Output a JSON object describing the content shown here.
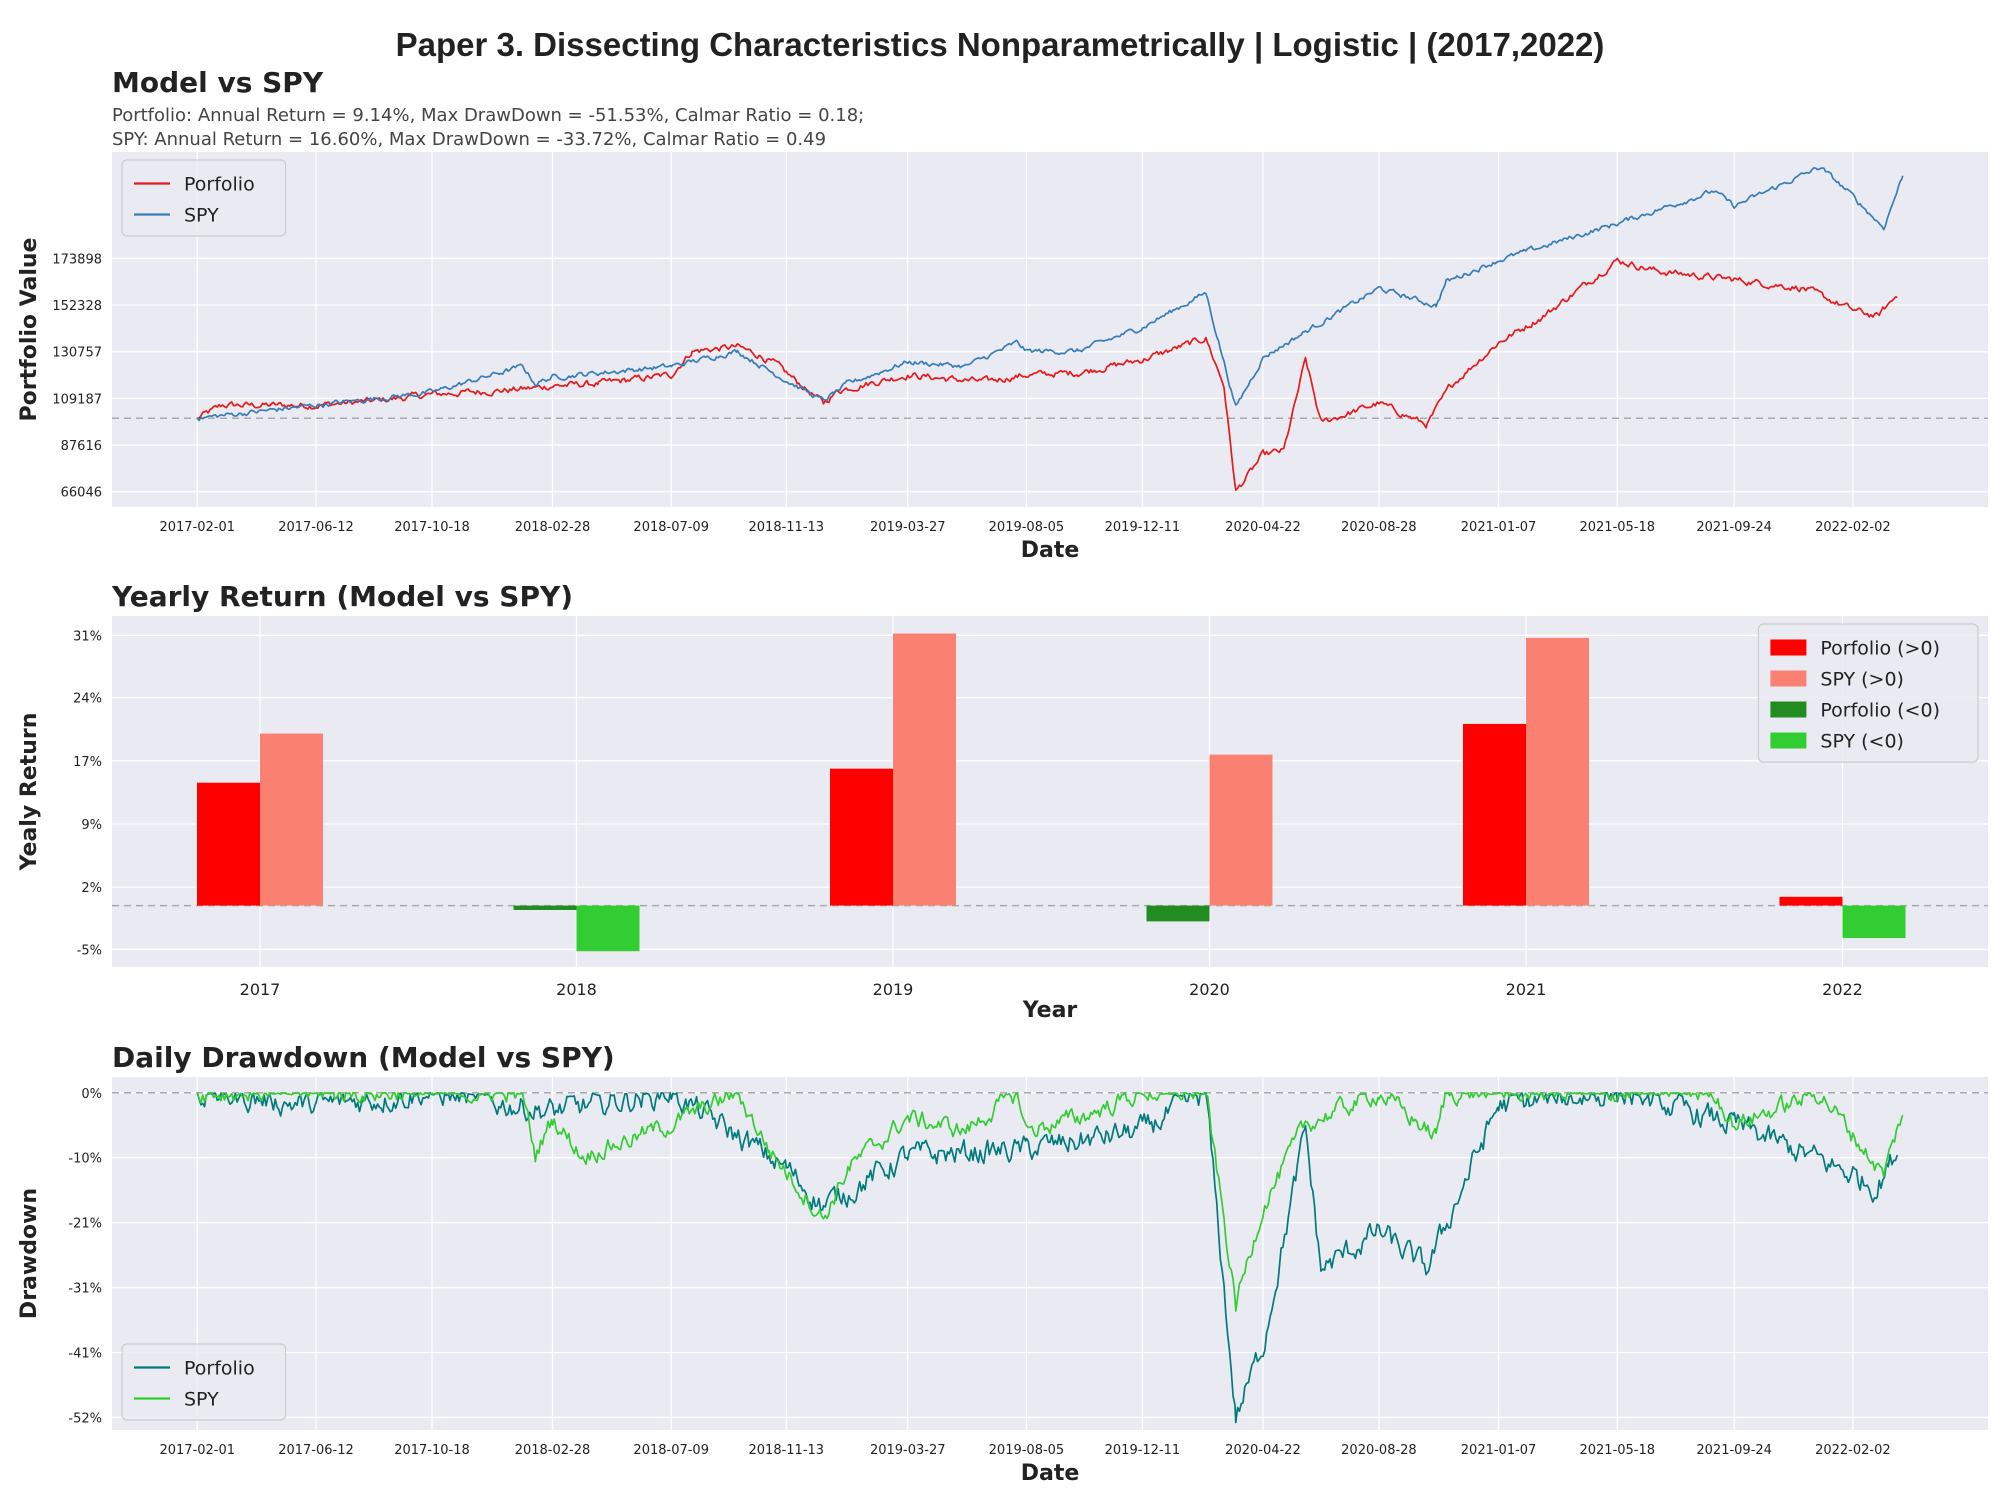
{
  "figure_title": "Paper 3. Dissecting Characteristics Nonparametrically | Logistic | (2017,2022)",
  "colors": {
    "portfolio_line": "#e41a1c",
    "spy_line": "#377eb8",
    "pos_portfolio": "#ff0000",
    "pos_spy": "#fa8072",
    "neg_portfolio": "#228b22",
    "neg_spy": "#32cd32",
    "dd_portfolio": "#007a7a",
    "dd_spy": "#32cd32",
    "panel_bg": "#eaeaf2",
    "grid": "#ffffff",
    "ref_line": "#aaaaaa"
  },
  "chart_data": [
    {
      "type": "line",
      "title": "Model vs SPY",
      "subtitle_lines": [
        "Portfolio: Annual Return = 9.14%, Max DrawDown = -51.53%, Calmar Ratio = 0.18;",
        "SPY: Annual Return = 16.60%, Max DrawDown = -33.72%, Calmar Ratio = 0.49"
      ],
      "xlabel": "Date",
      "ylabel": "Portfolio Value",
      "x_ticks": [
        "2017-02-01",
        "2017-06-12",
        "2017-10-18",
        "2018-02-28",
        "2018-07-09",
        "2018-11-13",
        "2019-03-27",
        "2019-08-05",
        "2019-12-11",
        "2020-04-22",
        "2020-08-28",
        "2021-01-07",
        "2021-05-18",
        "2021-09-24",
        "2022-02-02"
      ],
      "y_ticks": [
        66046,
        87616,
        109187,
        130757,
        152328,
        173898
      ],
      "ylim": [
        59000,
        223000
      ],
      "reference_value": 100000,
      "legend": "upper-left",
      "series": [
        {
          "name": "Porfolio",
          "anchors": [
            [
              "2017-02-01",
              100000
            ],
            [
              "2017-03-01",
              106000
            ],
            [
              "2017-06-12",
              106000
            ],
            [
              "2017-08-15",
              108000
            ],
            [
              "2017-10-18",
              111000
            ],
            [
              "2018-01-10",
              113000
            ],
            [
              "2018-02-09",
              114000
            ],
            [
              "2018-02-28",
              115000
            ],
            [
              "2018-04-20",
              116000
            ],
            [
              "2018-07-09",
              120000
            ],
            [
              "2018-08-01",
              131000
            ],
            [
              "2018-09-20",
              133000
            ],
            [
              "2018-10-15",
              129000
            ],
            [
              "2018-11-01",
              125000
            ],
            [
              "2018-12-24",
              107000
            ],
            [
              "2019-01-10",
              113000
            ],
            [
              "2019-03-27",
              120000
            ],
            [
              "2019-05-15",
              118000
            ],
            [
              "2019-06-20",
              117000
            ],
            [
              "2019-08-05",
              120000
            ],
            [
              "2019-10-01",
              121000
            ],
            [
              "2019-12-11",
              127000
            ],
            [
              "2020-02-19",
              137000
            ],
            [
              "2020-03-10",
              115000
            ],
            [
              "2020-03-23",
              66000
            ],
            [
              "2020-04-22",
              83000
            ],
            [
              "2020-05-15",
              85000
            ],
            [
              "2020-06-08",
              127000
            ],
            [
              "2020-06-25",
              98000
            ],
            [
              "2020-08-28",
              107000
            ],
            [
              "2020-10-20",
              97000
            ],
            [
              "2020-11-15",
              115000
            ],
            [
              "2021-01-07",
              135000
            ],
            [
              "2021-02-25",
              147000
            ],
            [
              "2021-05-18",
              173000
            ],
            [
              "2021-07-01",
              168000
            ],
            [
              "2021-09-24",
              164000
            ],
            [
              "2021-12-10",
              160000
            ],
            [
              "2022-02-02",
              150000
            ],
            [
              "2022-03-01",
              147000
            ],
            [
              "2022-03-23",
              157000
            ]
          ]
        },
        {
          "name": "SPY",
          "anchors": [
            [
              "2017-02-01",
              100000
            ],
            [
              "2017-06-12",
              106000
            ],
            [
              "2017-10-18",
              112000
            ],
            [
              "2018-01-26",
              124000
            ],
            [
              "2018-02-09",
              116000
            ],
            [
              "2018-02-28",
              119000
            ],
            [
              "2018-07-09",
              124000
            ],
            [
              "2018-09-20",
              131000
            ],
            [
              "2018-10-25",
              122000
            ],
            [
              "2018-12-24",
              108000
            ],
            [
              "2019-01-20",
              116000
            ],
            [
              "2019-03-27",
              126000
            ],
            [
              "2019-05-30",
              124000
            ],
            [
              "2019-07-26",
              135000
            ],
            [
              "2019-08-05",
              131000
            ],
            [
              "2019-10-01",
              131000
            ],
            [
              "2019-12-11",
              142000
            ],
            [
              "2020-02-19",
              158000
            ],
            [
              "2020-03-23",
              105000
            ],
            [
              "2020-04-22",
              128000
            ],
            [
              "2020-06-08",
              140000
            ],
            [
              "2020-08-28",
              160000
            ],
            [
              "2020-10-30",
              152000
            ],
            [
              "2020-11-10",
              163000
            ],
            [
              "2021-01-07",
              173000
            ],
            [
              "2021-05-18",
              190000
            ],
            [
              "2021-09-02",
              205000
            ],
            [
              "2021-09-24",
              198000
            ],
            [
              "2021-12-28",
              216000
            ],
            [
              "2022-01-27",
              205000
            ],
            [
              "2022-03-08",
              188000
            ],
            [
              "2022-03-29",
              212000
            ]
          ]
        }
      ]
    },
    {
      "type": "bar",
      "title": "Yearly Return (Model vs SPY)",
      "xlabel": "Year",
      "ylabel": "Yealy Return",
      "categories": [
        "2017",
        "2018",
        "2019",
        "2020",
        "2021",
        "2022"
      ],
      "y_ticks": [
        "-5%",
        "2%",
        "9%",
        "17%",
        "24%",
        "31%"
      ],
      "ylim": [
        -7,
        33
      ],
      "legend": "upper-right",
      "series": [
        {
          "name": "Porfolio",
          "values": [
            14.0,
            -0.5,
            15.6,
            -1.8,
            20.7,
            1.0
          ]
        },
        {
          "name": "SPY",
          "values": [
            19.6,
            -5.2,
            31.0,
            17.2,
            30.5,
            -3.7
          ]
        }
      ],
      "legend_entries": [
        "Porfolio (>0)",
        "SPY (>0)",
        "Porfolio (<0)",
        "SPY (<0)"
      ]
    },
    {
      "type": "area",
      "title": "Daily Drawdown (Model vs SPY)",
      "xlabel": "Date",
      "ylabel": "Drawdown",
      "x_ticks": [
        "2017-02-01",
        "2017-06-12",
        "2017-10-18",
        "2018-02-28",
        "2018-07-09",
        "2018-11-13",
        "2019-03-27",
        "2019-08-05",
        "2019-12-11",
        "2020-04-22",
        "2020-08-28",
        "2021-01-07",
        "2021-05-18",
        "2021-09-24",
        "2022-02-02"
      ],
      "y_ticks": [
        "0%",
        "-10%",
        "-21%",
        "-31%",
        "-41%",
        "-52%"
      ],
      "ylim": [
        -53.5,
        2.5
      ],
      "legend": "lower-left",
      "series": [
        {
          "name": "Porfolio",
          "anchors": [
            [
              "2017-02-01",
              0
            ],
            [
              "2017-06-12",
              -2
            ],
            [
              "2017-10-18",
              0
            ],
            [
              "2018-02-28",
              -3
            ],
            [
              "2018-07-09",
              0
            ],
            [
              "2018-11-13",
              -12
            ],
            [
              "2018-12-24",
              -18
            ],
            [
              "2019-03-27",
              -10
            ],
            [
              "2019-08-05",
              -9
            ],
            [
              "2019-12-11",
              -6
            ],
            [
              "2020-02-19",
              0
            ],
            [
              "2020-03-23",
              -51.5
            ],
            [
              "2020-04-22",
              -40
            ],
            [
              "2020-06-08",
              -6
            ],
            [
              "2020-06-25",
              -28
            ],
            [
              "2020-08-28",
              -22
            ],
            [
              "2020-10-20",
              -28
            ],
            [
              "2020-12-01",
              -14
            ],
            [
              "2021-01-07",
              -2
            ],
            [
              "2021-05-18",
              0
            ],
            [
              "2021-09-24",
              -5
            ],
            [
              "2022-02-02",
              -13
            ],
            [
              "2022-03-01",
              -15
            ],
            [
              "2022-03-23",
              -9
            ]
          ]
        },
        {
          "name": "SPY",
          "anchors": [
            [
              "2017-02-01",
              0
            ],
            [
              "2017-10-18",
              0
            ],
            [
              "2018-01-26",
              0
            ],
            [
              "2018-02-09",
              -10
            ],
            [
              "2018-02-28",
              -4
            ],
            [
              "2018-04-02",
              -10
            ],
            [
              "2018-07-09",
              -5
            ],
            [
              "2018-09-20",
              0
            ],
            [
              "2018-10-25",
              -9
            ],
            [
              "2018-12-24",
              -20
            ],
            [
              "2019-01-20",
              -12
            ],
            [
              "2019-03-27",
              -4
            ],
            [
              "2019-05-30",
              -6
            ],
            [
              "2019-07-26",
              0
            ],
            [
              "2019-08-05",
              -6
            ],
            [
              "2019-10-01",
              -4
            ],
            [
              "2019-12-11",
              0
            ],
            [
              "2020-02-19",
              0
            ],
            [
              "2020-03-23",
              -33.7
            ],
            [
              "2020-04-22",
              -18
            ],
            [
              "2020-06-08",
              -5
            ],
            [
              "2020-08-28",
              0
            ],
            [
              "2020-10-30",
              -7
            ],
            [
              "2020-11-10",
              0
            ],
            [
              "2021-09-02",
              0
            ],
            [
              "2021-09-24",
              -5
            ],
            [
              "2021-12-28",
              0
            ],
            [
              "2022-03-08",
              -13
            ],
            [
              "2022-03-29",
              -3
            ]
          ]
        }
      ]
    }
  ]
}
